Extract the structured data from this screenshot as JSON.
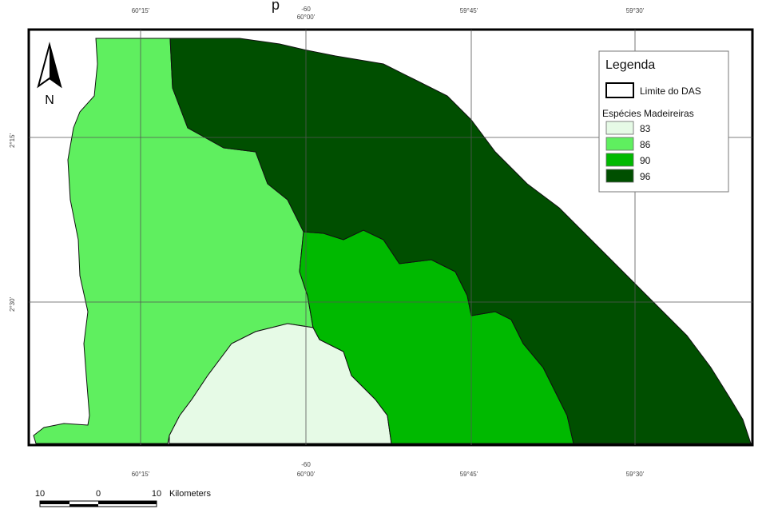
{
  "map": {
    "title_fragment": "p",
    "legend": {
      "title": "Legenda",
      "boundary_label": "Limite do DAS",
      "class_title": "Espécies Madeireiras",
      "classes": [
        {
          "label": "83",
          "color": "#e6fae6"
        },
        {
          "label": "86",
          "color": "#5fef5f"
        },
        {
          "label": "90",
          "color": "#00b900"
        },
        {
          "label": "96",
          "color": "#004f00"
        }
      ]
    },
    "north_arrow_label": "N",
    "top_ticks": [
      "60°15'",
      "60°00'",
      "59°45'",
      "59°30'"
    ],
    "top_center_extra": "-60",
    "bottom_ticks": [
      "60°15'",
      "60°00'",
      "59°45'",
      "59°30'"
    ],
    "bottom_center_extra": "-60",
    "left_ticks": [
      "2°15'",
      "2°30'"
    ],
    "scale_bar": {
      "labels": [
        "10",
        "0",
        "10"
      ],
      "unit": "Kilometers"
    }
  }
}
